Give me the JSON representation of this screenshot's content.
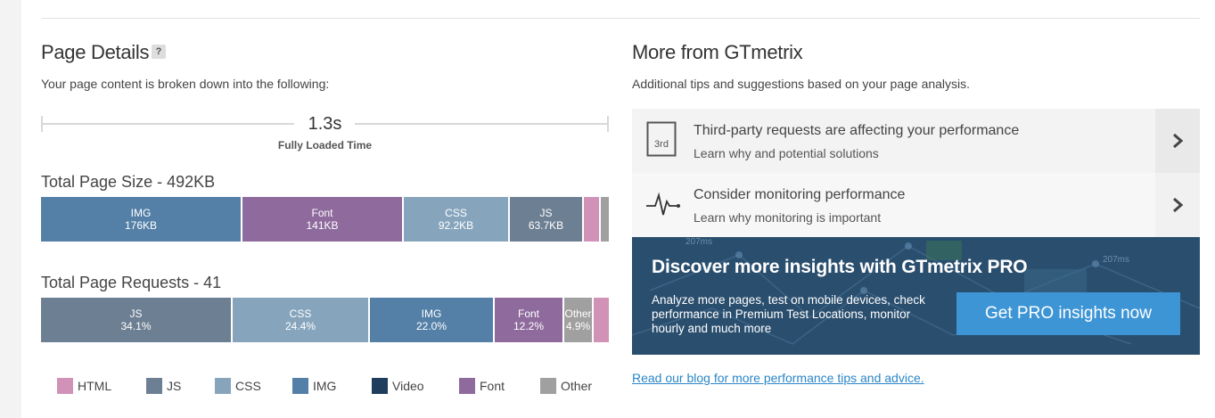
{
  "page_details": {
    "title": "Page Details",
    "help": "?",
    "subtitle": "Your page content is broken down into the following:",
    "timeline": {
      "value": "1.3s",
      "label": "Fully Loaded Time"
    },
    "size": {
      "title": "Total Page Size - 492KB",
      "segments": [
        {
          "name": "IMG",
          "value": "176KB",
          "color": "#5480a7"
        },
        {
          "name": "Font",
          "value": "141KB",
          "color": "#8e6a9d"
        },
        {
          "name": "CSS",
          "value": "92.2KB",
          "color": "#86a5bd"
        },
        {
          "name": "JS",
          "value": "63.7KB",
          "color": "#6d7f93"
        },
        {
          "name": "",
          "value": "",
          "color": "#d192b8"
        },
        {
          "name": "",
          "value": "",
          "color": "#a0a0a0"
        }
      ]
    },
    "requests": {
      "title": "Total Page Requests - 41",
      "segments": [
        {
          "name": "JS",
          "value": "34.1%",
          "color": "#6d7f93"
        },
        {
          "name": "CSS",
          "value": "24.4%",
          "color": "#86a5bd"
        },
        {
          "name": "IMG",
          "value": "22.0%",
          "color": "#5480a7"
        },
        {
          "name": "Font",
          "value": "12.2%",
          "color": "#8e6a9d"
        },
        {
          "name": "Other",
          "value": "4.9%",
          "color": "#a0a0a0"
        },
        {
          "name": "",
          "value": "",
          "color": "#d192b8"
        }
      ]
    },
    "legend": [
      {
        "label": "HTML",
        "color": "#d192b8"
      },
      {
        "label": "JS",
        "color": "#6d7f93"
      },
      {
        "label": "CSS",
        "color": "#86a5bd"
      },
      {
        "label": "IMG",
        "color": "#5480a7"
      },
      {
        "label": "Video",
        "color": "#1f3d5c"
      },
      {
        "label": "Font",
        "color": "#8e6a9d"
      },
      {
        "label": "Other",
        "color": "#a0a0a0"
      }
    ]
  },
  "more": {
    "title": "More from GTmetrix",
    "subtitle": "Additional tips and suggestions based on your page analysis.",
    "tips": [
      {
        "icon": "third-party-icon",
        "icon_text": "3rd",
        "title": "Third-party requests are affecting your performance",
        "sub": "Learn why and potential solutions"
      },
      {
        "icon": "heartbeat-icon",
        "title": "Consider monitoring performance",
        "sub": "Learn why monitoring is important"
      }
    ],
    "promo": {
      "title": "Discover more insights with GTmetrix PRO",
      "text": "Analyze more pages, test on mobile devices, check performance in Premium Test Locations, monitor hourly and much more",
      "button": "Get PRO insights now",
      "bg_chart_labels": [
        "207ms",
        "207ms"
      ]
    },
    "blog_link": "Read our blog for more performance tips and advice."
  }
}
